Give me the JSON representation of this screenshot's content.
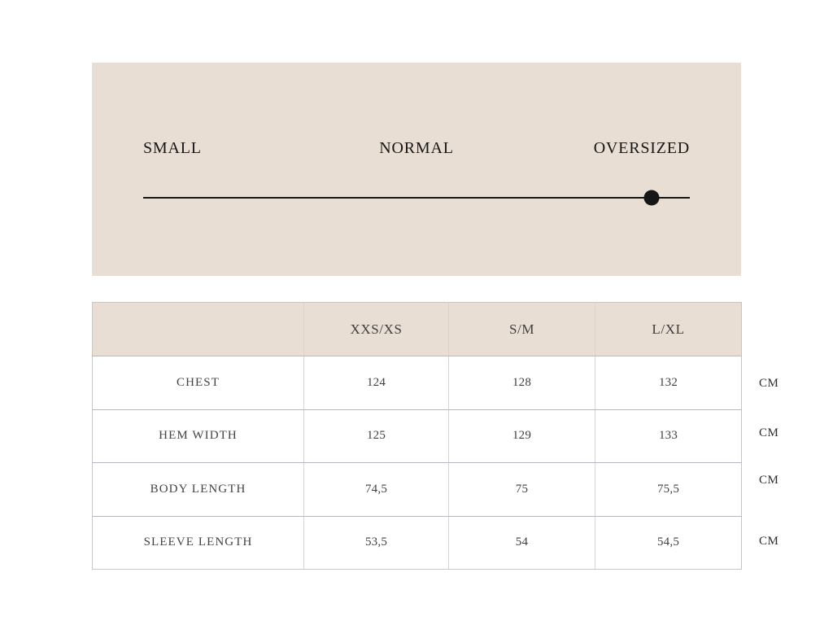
{
  "fit_scale": {
    "labels": [
      "SMALL",
      "NORMAL",
      "OVERSIZED"
    ],
    "position_percent": 93
  },
  "size_table": {
    "columns": [
      "XXS/XS",
      "S/M",
      "L/XL"
    ],
    "rows": [
      {
        "label": "CHEST",
        "values": [
          "124",
          "128",
          "132"
        ],
        "unit": "CM"
      },
      {
        "label": "HEM WIDTH",
        "values": [
          "125",
          "129",
          "133"
        ],
        "unit": "CM"
      },
      {
        "label": "BODY LENGTH",
        "values": [
          "74,5",
          "75",
          "75,5"
        ],
        "unit": "CM"
      },
      {
        "label": "SLEEVE LENGTH",
        "values": [
          "53,5",
          "54",
          "54,5"
        ],
        "unit": "CM"
      }
    ]
  },
  "colors": {
    "panel_background": "#e9ded4",
    "header_background": "#e9ded4",
    "ink": "#161616",
    "table_text": "#454243",
    "border_outer": "#c7c4cf",
    "border_h": "#b9b7c1",
    "border_v": "#d6d3df"
  }
}
